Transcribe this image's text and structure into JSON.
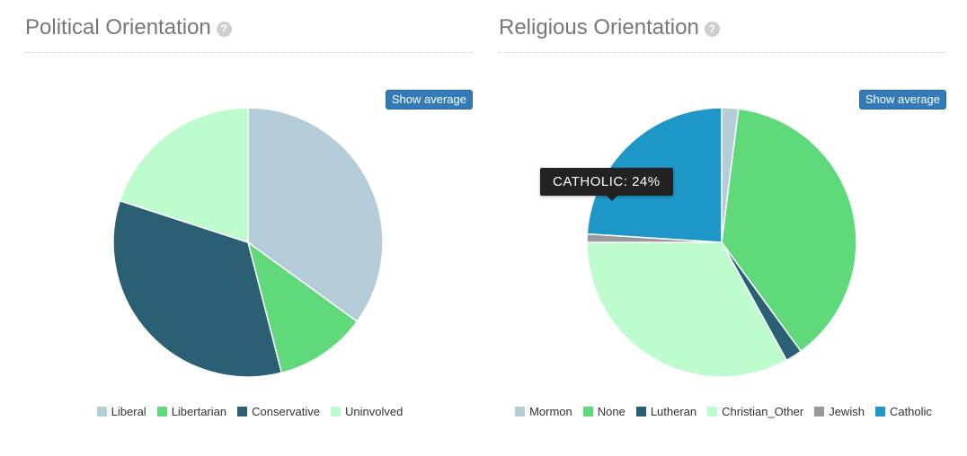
{
  "panels": {
    "political": {
      "title": "Political Orientation",
      "help_icon": "question-circle-icon",
      "show_average_label": "Show average"
    },
    "religious": {
      "title": "Religious Orientation",
      "help_icon": "question-circle-icon",
      "show_average_label": "Show average",
      "tooltip": "CATHOLIC: 24%"
    }
  },
  "chart_data": [
    {
      "type": "pie",
      "title": "Political Orientation",
      "labels": [
        "Liberal",
        "Libertarian",
        "Conservative",
        "Uninvolved"
      ],
      "values": [
        35,
        11,
        34,
        20
      ],
      "colors": [
        "#b5cdd8",
        "#5fd97a",
        "#2b6074",
        "#bdfccc"
      ],
      "legend_position": "bottom"
    },
    {
      "type": "pie",
      "title": "Religious Orientation",
      "labels": [
        "Mormon",
        "None",
        "Lutheran",
        "Christian_Other",
        "Jewish",
        "Catholic"
      ],
      "values": [
        2,
        38,
        2,
        33,
        1,
        24
      ],
      "colors": [
        "#b5cdd8",
        "#5fd97a",
        "#2b6074",
        "#bdfccc",
        "#999999",
        "#1e96c8"
      ],
      "legend_position": "bottom"
    }
  ]
}
